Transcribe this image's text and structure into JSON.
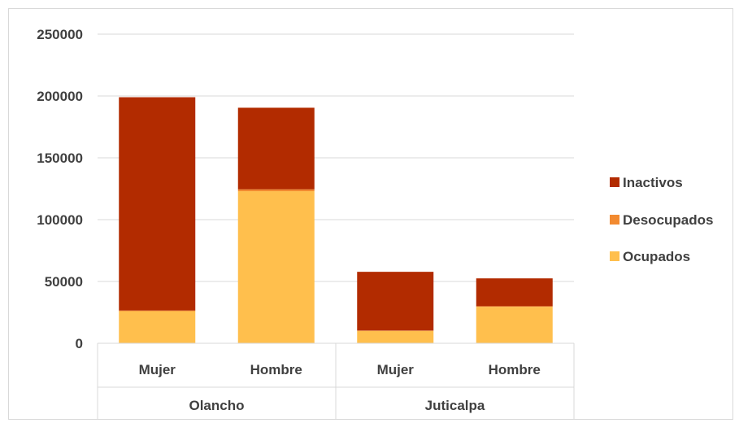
{
  "chart_data": {
    "type": "bar",
    "stacked": true,
    "categories": [
      "Mujer",
      "Hombre",
      "Mujer",
      "Hombre"
    ],
    "groups": [
      {
        "label": "Olancho",
        "categories": [
          "Mujer",
          "Hombre"
        ]
      },
      {
        "label": "Juticalpa",
        "categories": [
          "Mujer",
          "Hombre"
        ]
      }
    ],
    "series": [
      {
        "name": "Ocupados",
        "color": "#ffbf4d",
        "values": [
          26000,
          123000,
          10000,
          29500
        ]
      },
      {
        "name": "Desocupados",
        "color": "#f28a30",
        "values": [
          500,
          1500,
          300,
          500
        ]
      },
      {
        "name": "Inactivos",
        "color": "#b22b00",
        "values": [
          172500,
          66000,
          47500,
          22500
        ]
      }
    ],
    "ylim": [
      0,
      250000
    ],
    "yticks": [
      "0",
      "50000",
      "100000",
      "150000",
      "200000",
      "250000"
    ],
    "grid": true,
    "legend_position": "right",
    "legend_order": [
      "Inactivos",
      "Desocupados",
      "Ocupados"
    ]
  }
}
